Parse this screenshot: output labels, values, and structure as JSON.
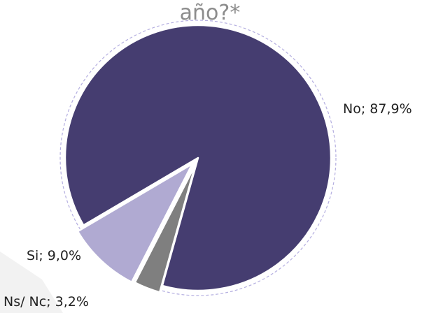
{
  "chart_data": {
    "type": "pie",
    "title": "año?*",
    "values": [
      87.9,
      3.2,
      9.0
    ],
    "value_labels": [
      "No; 87,9%",
      "Ns/ Nc; 3,2%",
      "Si; 9,0%"
    ],
    "colors": [
      "#453d70",
      "#7f7f7f",
      "#b0aad2"
    ]
  }
}
